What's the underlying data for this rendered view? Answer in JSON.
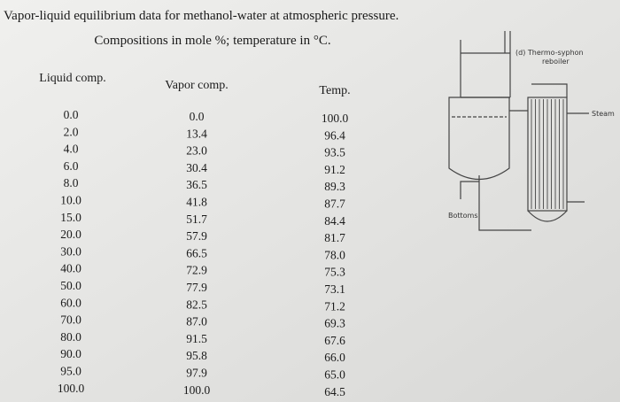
{
  "header": {
    "line1": "Vapor-liquid equilibrium data for methanol-water at atmospheric pressure.",
    "line2": "Compositions in mole %; temperature in °C."
  },
  "table": {
    "columns": [
      "Liquid comp.",
      "Vapor comp.",
      "Temp."
    ],
    "rows": [
      [
        "0.0",
        "0.0",
        "100.0"
      ],
      [
        "2.0",
        "13.4",
        "96.4"
      ],
      [
        "4.0",
        "23.0",
        "93.5"
      ],
      [
        "6.0",
        "30.4",
        "91.2"
      ],
      [
        "8.0",
        "36.5",
        "89.3"
      ],
      [
        "10.0",
        "41.8",
        "87.7"
      ],
      [
        "15.0",
        "51.7",
        "84.4"
      ],
      [
        "20.0",
        "57.9",
        "81.7"
      ],
      [
        "30.0",
        "66.5",
        "78.0"
      ],
      [
        "40.0",
        "72.9",
        "75.3"
      ],
      [
        "50.0",
        "77.9",
        "73.1"
      ],
      [
        "60.0",
        "82.5",
        "71.2"
      ],
      [
        "70.0",
        "87.0",
        "69.3"
      ],
      [
        "80.0",
        "91.5",
        "67.6"
      ],
      [
        "90.0",
        "95.8",
        "66.0"
      ],
      [
        "95.0",
        "97.9",
        "65.0"
      ],
      [
        "100.0",
        "100.0",
        "64.5"
      ]
    ]
  },
  "diagram": {
    "label_line1": "(d) Thermo-syphon",
    "label_line2": "reboiler",
    "steam": "Steam",
    "bottoms": "Bottoms"
  }
}
